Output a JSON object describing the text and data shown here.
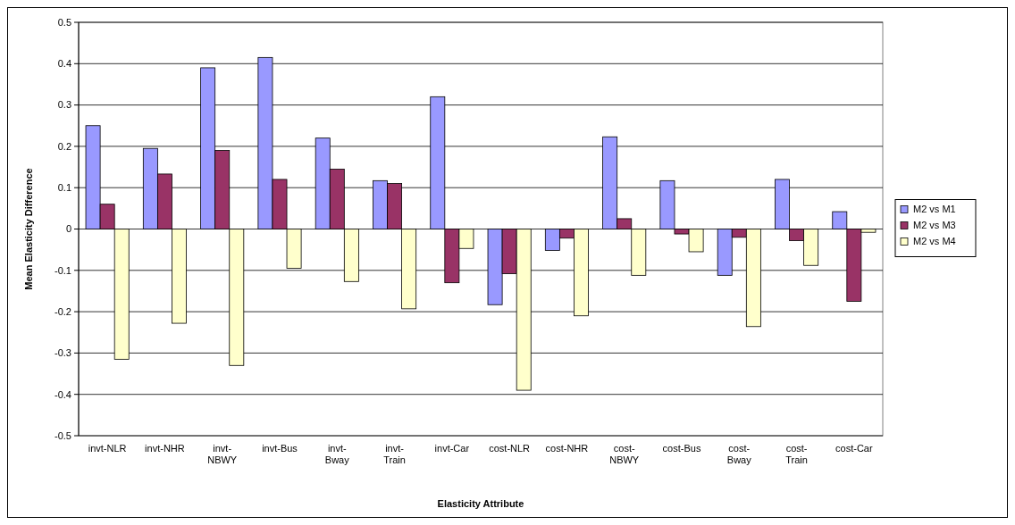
{
  "chart_data": {
    "type": "bar",
    "xlabel": "Elasticity Attribute",
    "ylabel": "Mean Elasticity Difference",
    "categories": [
      "invt-NLR",
      "invt-NHR",
      "invt-NBWY",
      "invt-Bus",
      "invt-Bway",
      "invt-Train",
      "invt-Car",
      "cost-NLR",
      "cost-NHR",
      "cost-NBWY",
      "cost-Bus",
      "cost-Bway",
      "cost-Train",
      "cost-Car"
    ],
    "series": [
      {
        "name": "M2 vs M1",
        "color": "#9999ff",
        "values": [
          0.25,
          0.195,
          0.39,
          0.415,
          0.22,
          0.117,
          0.32,
          -0.183,
          -0.052,
          0.223,
          0.117,
          -0.112,
          0.12,
          0.042
        ]
      },
      {
        "name": "M2 vs M3",
        "color": "#993366",
        "values": [
          0.06,
          0.133,
          0.19,
          0.12,
          0.145,
          0.11,
          -0.13,
          -0.108,
          -0.022,
          0.025,
          -0.012,
          -0.02,
          -0.028,
          -0.175
        ]
      },
      {
        "name": "M2 vs M4",
        "color": "#ffffcc",
        "values": [
          -0.315,
          -0.228,
          -0.33,
          -0.095,
          -0.127,
          -0.193,
          -0.047,
          -0.39,
          -0.21,
          -0.112,
          -0.055,
          -0.236,
          -0.088,
          -0.008
        ]
      }
    ],
    "ylim": [
      -0.5,
      0.5
    ],
    "yticks": [
      -0.5,
      -0.4,
      -0.3,
      -0.2,
      -0.1,
      0,
      0.1,
      0.2,
      0.3,
      0.4,
      0.5
    ],
    "grid": "y",
    "legend": "right"
  }
}
